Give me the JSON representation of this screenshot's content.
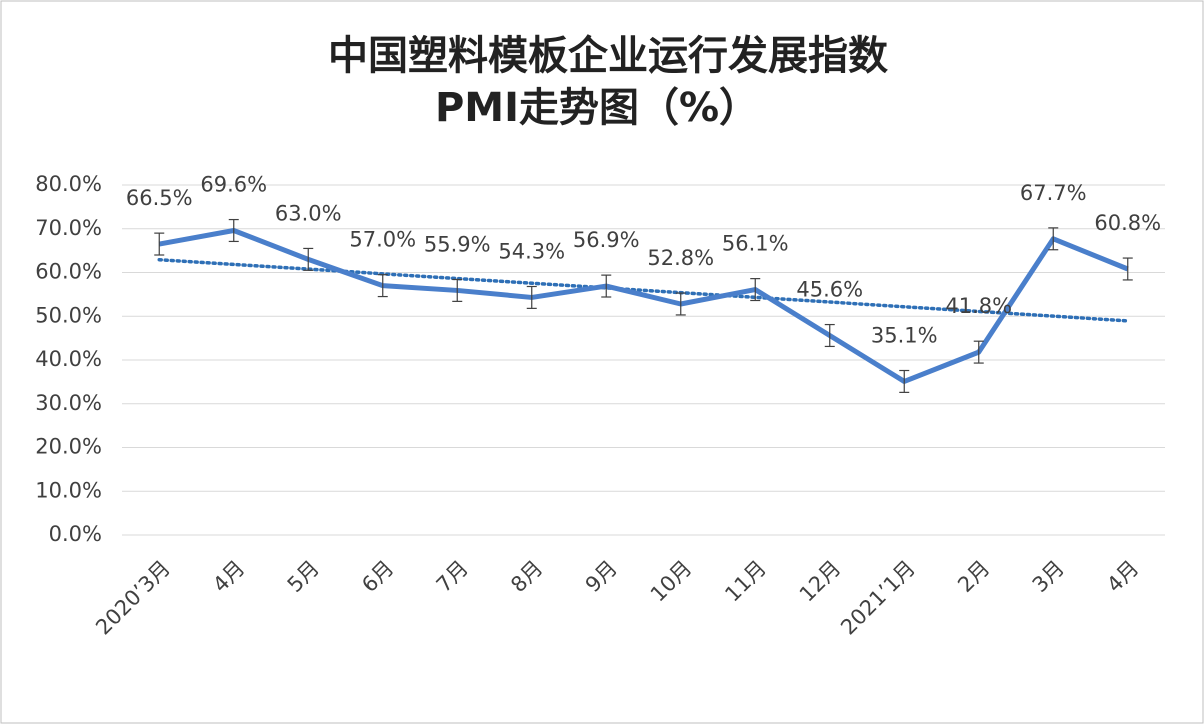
{
  "chart_data": {
    "type": "line",
    "title": "中国塑料模板企业运行发展指数",
    "subtitle": "PMI走势图（%）",
    "categories": [
      "2020’3月",
      "4月",
      "5月",
      "6月",
      "7月",
      "8月",
      "9月",
      "10月",
      "11月",
      "12月",
      "2021’1月",
      "2月",
      "3月",
      "4月"
    ],
    "values": [
      66.5,
      69.6,
      63.0,
      57.0,
      55.9,
      54.3,
      56.9,
      52.8,
      56.1,
      45.6,
      35.1,
      41.8,
      67.7,
      60.8
    ],
    "value_labels": [
      "66.5%",
      "69.6%",
      "63.0%",
      "57.0%",
      "55.9%",
      "54.3%",
      "56.9%",
      "52.8%",
      "56.1%",
      "45.6%",
      "35.1%",
      "41.8%",
      "67.7%",
      "60.8%"
    ],
    "error": 2.5,
    "color": "#4a7fcb",
    "trendline": {
      "type": "linear",
      "color": "#2e6fb6"
    },
    "ylim": [
      0,
      80
    ],
    "yticks": [
      {
        "value": 0,
        "label": "0.0%"
      },
      {
        "value": 10,
        "label": "10.0%"
      },
      {
        "value": 20,
        "label": "20.0%"
      },
      {
        "value": 30,
        "label": "30.0%"
      },
      {
        "value": 40,
        "label": "40.0%"
      },
      {
        "value": 50,
        "label": "50.0%"
      },
      {
        "value": 60,
        "label": "60.0%"
      },
      {
        "value": 70,
        "label": "70.0%"
      },
      {
        "value": 80,
        "label": "80.0%"
      }
    ],
    "grid": true
  }
}
